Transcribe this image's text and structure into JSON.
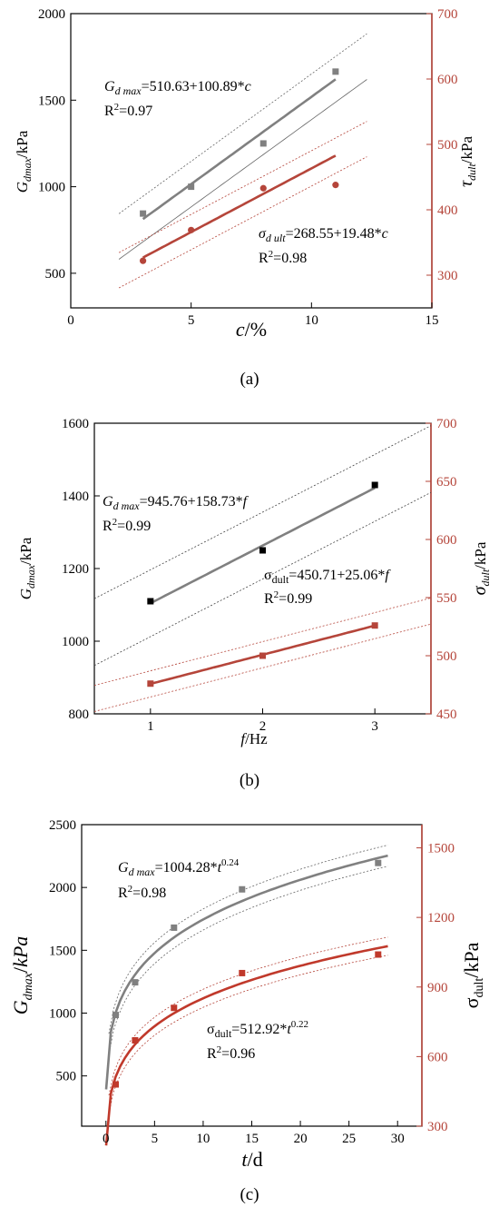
{
  "chart_data": [
    {
      "type": "scatter",
      "panel_label": "(a)",
      "xlabel": "c/%",
      "ylabel": "Gdmax/kPa",
      "y2label": "τdult/kPa",
      "xlim": [
        0,
        15
      ],
      "ylim": [
        300,
        2000
      ],
      "y2lim": [
        250,
        700
      ],
      "xticks": [
        "0",
        "5",
        "10",
        "15"
      ],
      "yticks": [
        "500",
        "1000",
        "1500",
        "2000"
      ],
      "y2ticks": [
        "300",
        "400",
        "500",
        "600",
        "700"
      ],
      "series": [
        {
          "axis": "left",
          "color": "#808080",
          "marker": "square",
          "x": [
            3,
            5,
            8,
            11
          ],
          "y": [
            845,
            1000,
            1250,
            1665
          ],
          "fit": {
            "type": "linear",
            "a": 510.63,
            "b": 100.89
          }
        },
        {
          "axis": "right",
          "color": "#b5453a",
          "marker": "circle",
          "x": [
            3,
            5,
            8,
            11
          ],
          "y": [
            322,
            369,
            433,
            438
          ],
          "fit": {
            "type": "linear",
            "a": 268.55,
            "b": 19.48
          }
        }
      ],
      "annotations": [
        {
          "id": "eq1",
          "prefix": "G",
          "sub": "d max",
          "rest": "=510.63+100.89*",
          "var": "c"
        },
        {
          "id": "r1",
          "text": "R",
          "sup": "2",
          "rest": "=0.97"
        },
        {
          "id": "eq2",
          "prefix": "σ",
          "sub": "d ult",
          "rest": "=268.55+19.48*",
          "var": "c"
        },
        {
          "id": "r2",
          "text": "R",
          "sup": "2",
          "rest": "=0.98"
        }
      ]
    },
    {
      "type": "scatter",
      "panel_label": "(b)",
      "xlabel": "f/Hz",
      "ylabel": "Gdmax/kPa",
      "y2label": "σdult/kPa",
      "xlim": [
        0.5,
        3.5
      ],
      "ylim": [
        800,
        1600
      ],
      "y2lim": [
        450,
        700
      ],
      "xticks": [
        "1",
        "2",
        "3"
      ],
      "yticks": [
        "800",
        "1000",
        "1200",
        "1400",
        "1600"
      ],
      "y2ticks": [
        "450",
        "500",
        "550",
        "600",
        "650",
        "700"
      ],
      "series": [
        {
          "axis": "left",
          "color": "#000000",
          "marker": "square",
          "x": [
            1,
            2,
            3
          ],
          "y": [
            1110,
            1250,
            1430
          ],
          "fit": {
            "type": "linear",
            "a": 945.76,
            "b": 158.73
          }
        },
        {
          "axis": "right",
          "color": "#b5453a",
          "marker": "square",
          "x": [
            1,
            2,
            3
          ],
          "y": [
            476,
            500,
            526
          ],
          "fit": {
            "type": "linear",
            "a": 450.71,
            "b": 25.06
          }
        }
      ],
      "annotations": [
        {
          "id": "eq1",
          "prefix": "G",
          "sub": "d max",
          "rest": "=945.76+158.73*",
          "var": "f"
        },
        {
          "id": "r1",
          "text": "R",
          "sup": "2",
          "rest": "=0.99"
        },
        {
          "id": "eq2",
          "prefix": "σ",
          "sub": "dult",
          "rest": "=450.71+25.06*",
          "var": "f"
        },
        {
          "id": "r2",
          "text": "R",
          "sup": "2",
          "rest": "=0.99"
        }
      ]
    },
    {
      "type": "scatter",
      "panel_label": "(c)",
      "xlabel": "t/d",
      "ylabel": "Gdmax/kPa",
      "y2label": "σdult/kPa",
      "xlim": [
        -2.5,
        32.5
      ],
      "ylim": [
        100,
        2500
      ],
      "y2lim": [
        300,
        1600
      ],
      "xticks": [
        "0",
        "5",
        "10",
        "15",
        "20",
        "25",
        "30"
      ],
      "yticks": [
        "500",
        "1000",
        "1500",
        "2000",
        "2500"
      ],
      "y2ticks": [
        "300",
        "600",
        "900",
        "1200",
        "1500"
      ],
      "series": [
        {
          "axis": "left",
          "color": "#808080",
          "marker": "square",
          "x": [
            1,
            3,
            7,
            14,
            28
          ],
          "y": [
            985,
            1245,
            1680,
            1985,
            2195
          ],
          "fit": {
            "type": "power",
            "a": 1004.28,
            "b": 0.24
          }
        },
        {
          "axis": "right",
          "color": "#c0392b",
          "marker": "square",
          "x": [
            1,
            3,
            7,
            14,
            28
          ],
          "y": [
            480,
            670,
            810,
            960,
            1040
          ],
          "fit": {
            "type": "power",
            "a": 512.92,
            "b": 0.22
          }
        }
      ],
      "annotations": [
        {
          "id": "eq1",
          "prefix": "G",
          "sub": "d max",
          "rest": "=1004.28*",
          "var": "t",
          "sup": "0.24"
        },
        {
          "id": "r1",
          "text": "R",
          "sup": "2",
          "rest": "=0.98"
        },
        {
          "id": "eq2",
          "prefix": "σ",
          "sub": "dult",
          "rest": "=512.92*",
          "var": "t",
          "sup": "0.22"
        },
        {
          "id": "r2",
          "text": "R",
          "sup": "2",
          "rest": "=0.96"
        }
      ]
    }
  ]
}
